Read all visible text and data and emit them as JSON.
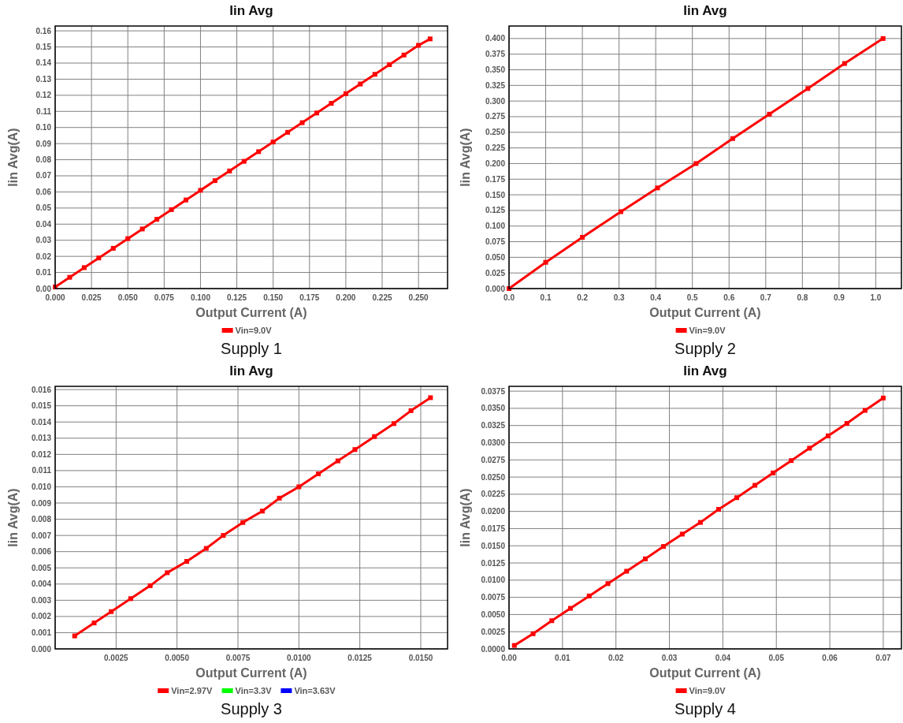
{
  "chart_data": [
    {
      "type": "line",
      "title": "Iin Avg",
      "xlabel": "Output Current (A)",
      "ylabel": "Iin Avg(A)",
      "annotations": [
        "Supply 1"
      ],
      "grid": true,
      "legend": "bottom",
      "marker": "square",
      "line_style": "solid",
      "xlim": [
        0,
        0.27
      ],
      "ylim": [
        0,
        0.163
      ],
      "xticks": [
        {
          "value": 0,
          "label": "0.000"
        },
        {
          "value": 0.025,
          "label": "0.025"
        },
        {
          "value": 0.05,
          "label": "0.050"
        },
        {
          "value": 0.075,
          "label": "0.075"
        },
        {
          "value": 0.1,
          "label": "0.100"
        },
        {
          "value": 0.125,
          "label": "0.125"
        },
        {
          "value": 0.15,
          "label": "0.150"
        },
        {
          "value": 0.175,
          "label": "0.175"
        },
        {
          "value": 0.2,
          "label": "0.200"
        },
        {
          "value": 0.225,
          "label": "0.225"
        },
        {
          "value": 0.25,
          "label": "0.250"
        }
      ],
      "yticks": [
        {
          "value": 0,
          "label": "0.00"
        },
        0.01,
        0.02,
        0.03,
        0.04,
        0.05,
        0.06,
        0.07,
        0.08,
        0.09,
        {
          "value": 0.1,
          "label": "0.10"
        },
        0.11,
        0.12,
        0.13,
        0.14,
        0.15,
        0.16
      ],
      "series": [
        {
          "name": "Vin=9.0V",
          "color": "#ff0000",
          "x": [
            0,
            0.01,
            0.02,
            0.03,
            0.04,
            0.05,
            0.06,
            0.07,
            0.08,
            0.09,
            0.1,
            0.11,
            0.12,
            0.13,
            0.14,
            0.15,
            0.16,
            0.17,
            0.18,
            0.19,
            0.2,
            0.21,
            0.22,
            0.23,
            0.24,
            0.25,
            0.258
          ],
          "values": [
            0.001,
            0.007,
            0.013,
            0.019,
            0.025,
            0.031,
            0.037,
            0.043,
            0.049,
            0.055,
            0.061,
            0.067,
            0.073,
            0.079,
            0.085,
            0.091,
            0.097,
            0.103,
            0.109,
            0.115,
            0.121,
            0.127,
            0.133,
            0.139,
            0.145,
            0.151,
            0.155
          ]
        }
      ]
    },
    {
      "type": "line",
      "title": "Iin Avg",
      "xlabel": "Output Current (A)",
      "ylabel": "Iin Avg(A)",
      "annotations": [
        "Supply 2"
      ],
      "grid": true,
      "legend": "bottom",
      "marker": "square",
      "line_style": "solid",
      "xlim": [
        0,
        1.07
      ],
      "ylim": [
        0,
        0.42
      ],
      "xticks": [
        {
          "value": 0,
          "label": "0.0"
        },
        0.1,
        0.2,
        0.3,
        0.4,
        0.5,
        0.6,
        0.7,
        0.8,
        0.9,
        {
          "value": 1,
          "label": "1.0"
        }
      ],
      "yticks": [
        {
          "value": 0,
          "label": "0.000"
        },
        {
          "value": 0.025,
          "label": "0.025"
        },
        {
          "value": 0.05,
          "label": "0.050"
        },
        {
          "value": 0.075,
          "label": "0.075"
        },
        {
          "value": 0.1,
          "label": "0.100"
        },
        {
          "value": 0.125,
          "label": "0.125"
        },
        {
          "value": 0.15,
          "label": "0.150"
        },
        {
          "value": 0.175,
          "label": "0.175"
        },
        {
          "value": 0.2,
          "label": "0.200"
        },
        {
          "value": 0.225,
          "label": "0.225"
        },
        {
          "value": 0.25,
          "label": "0.250"
        },
        {
          "value": 0.275,
          "label": "0.275"
        },
        {
          "value": 0.3,
          "label": "0.300"
        },
        {
          "value": 0.325,
          "label": "0.325"
        },
        {
          "value": 0.35,
          "label": "0.350"
        },
        {
          "value": 0.375,
          "label": "0.375"
        },
        {
          "value": 0.4,
          "label": "0.400"
        }
      ],
      "series": [
        {
          "name": "Vin=9.0V",
          "color": "#ff0000",
          "x": [
            0,
            0.1,
            0.2,
            0.305,
            0.405,
            0.51,
            0.61,
            0.71,
            0.815,
            0.915,
            1.02
          ],
          "values": [
            0,
            0.042,
            0.082,
            0.123,
            0.161,
            0.2,
            0.24,
            0.279,
            0.32,
            0.36,
            0.4
          ]
        }
      ]
    },
    {
      "type": "line",
      "title": "Iin Avg",
      "xlabel": "Output Current (A)",
      "ylabel": "Iin Avg(A)",
      "annotations": [
        "Supply 3"
      ],
      "grid": true,
      "legend": "bottom",
      "marker": "square",
      "line_style": "solid",
      "xlim": [
        0,
        0.0161
      ],
      "ylim": [
        0,
        0.0162
      ],
      "xticks": [
        {
          "value": 0,
          "label": null
        },
        {
          "value": 0.0025,
          "label": "0.0025"
        },
        {
          "value": 0.005,
          "label": "0.0050"
        },
        {
          "value": 0.0075,
          "label": "0.0075"
        },
        {
          "value": 0.01,
          "label": "0.0100"
        },
        {
          "value": 0.0125,
          "label": "0.0125"
        },
        {
          "value": 0.015,
          "label": "0.0150"
        }
      ],
      "yticks": [
        {
          "value": 0,
          "label": "0.000"
        },
        0.001,
        0.002,
        0.003,
        0.004,
        0.005,
        0.006,
        0.007,
        0.008,
        0.009,
        {
          "value": 0.01,
          "label": "0.010"
        },
        0.011,
        0.012,
        0.013,
        0.014,
        0.015,
        0.016
      ],
      "series": [
        {
          "name": "Vin=2.97V",
          "color": "#ff0000",
          "x": [
            0.0008,
            0.0016,
            0.0023,
            0.0031,
            0.0039,
            0.0046,
            0.0054,
            0.0062,
            0.0069,
            0.0077,
            0.0085,
            0.0092,
            0.01,
            0.0108,
            0.0116,
            0.0123,
            0.0131,
            0.0139,
            0.0146,
            0.0154
          ],
          "values": [
            0.0008,
            0.0016,
            0.0023,
            0.0031,
            0.0039,
            0.0047,
            0.0054,
            0.0062,
            0.007,
            0.0078,
            0.0085,
            0.0093,
            0.01,
            0.0108,
            0.0116,
            0.0123,
            0.0131,
            0.0139,
            0.0147,
            0.0155
          ]
        },
        {
          "name": "Vin=3.3V",
          "color": "#00ff00"
        },
        {
          "name": "Vin=3.63V",
          "color": "#0000ff"
        }
      ]
    },
    {
      "type": "line",
      "title": "Iin Avg",
      "xlabel": "Output Current (A)",
      "ylabel": "Iin Avg(A)",
      "annotations": [
        "Supply 4"
      ],
      "grid": true,
      "legend": "bottom",
      "marker": "square",
      "line_style": "solid",
      "xlim": [
        0,
        0.0734
      ],
      "ylim": [
        0,
        0.0382
      ],
      "xticks": [
        {
          "value": 0,
          "label": "0.00"
        },
        0.01,
        0.02,
        0.03,
        0.04,
        0.05,
        0.06,
        0.07
      ],
      "yticks": [
        {
          "value": 0,
          "label": "0.0000"
        },
        {
          "value": 0.0025,
          "label": "0.0025"
        },
        {
          "value": 0.005,
          "label": "0.0050"
        },
        {
          "value": 0.0075,
          "label": "0.0075"
        },
        {
          "value": 0.01,
          "label": "0.0100"
        },
        {
          "value": 0.0125,
          "label": "0.0125"
        },
        {
          "value": 0.015,
          "label": "0.0150"
        },
        {
          "value": 0.0175,
          "label": "0.0175"
        },
        {
          "value": 0.02,
          "label": "0.0200"
        },
        {
          "value": 0.0225,
          "label": "0.0225"
        },
        {
          "value": 0.025,
          "label": "0.0250"
        },
        {
          "value": 0.0275,
          "label": "0.0275"
        },
        {
          "value": 0.03,
          "label": "0.0300"
        },
        {
          "value": 0.0325,
          "label": "0.0325"
        },
        {
          "value": 0.035,
          "label": "0.0350"
        },
        {
          "value": 0.0375,
          "label": "0.0375"
        }
      ],
      "series": [
        {
          "name": "Vin=9.0V",
          "color": "#ff0000",
          "x": [
            0.001,
            0.0045,
            0.008,
            0.0115,
            0.015,
            0.0185,
            0.022,
            0.0255,
            0.0289,
            0.0324,
            0.0358,
            0.0392,
            0.0426,
            0.046,
            0.0494,
            0.0528,
            0.0562,
            0.0597,
            0.0632,
            0.0666,
            0.07
          ],
          "values": [
            0.0005,
            0.0022,
            0.0041,
            0.0059,
            0.0077,
            0.0095,
            0.0113,
            0.0131,
            0.0149,
            0.0167,
            0.0184,
            0.0203,
            0.022,
            0.0238,
            0.0256,
            0.0274,
            0.0292,
            0.031,
            0.0328,
            0.0347,
            0.0365
          ]
        }
      ]
    }
  ]
}
